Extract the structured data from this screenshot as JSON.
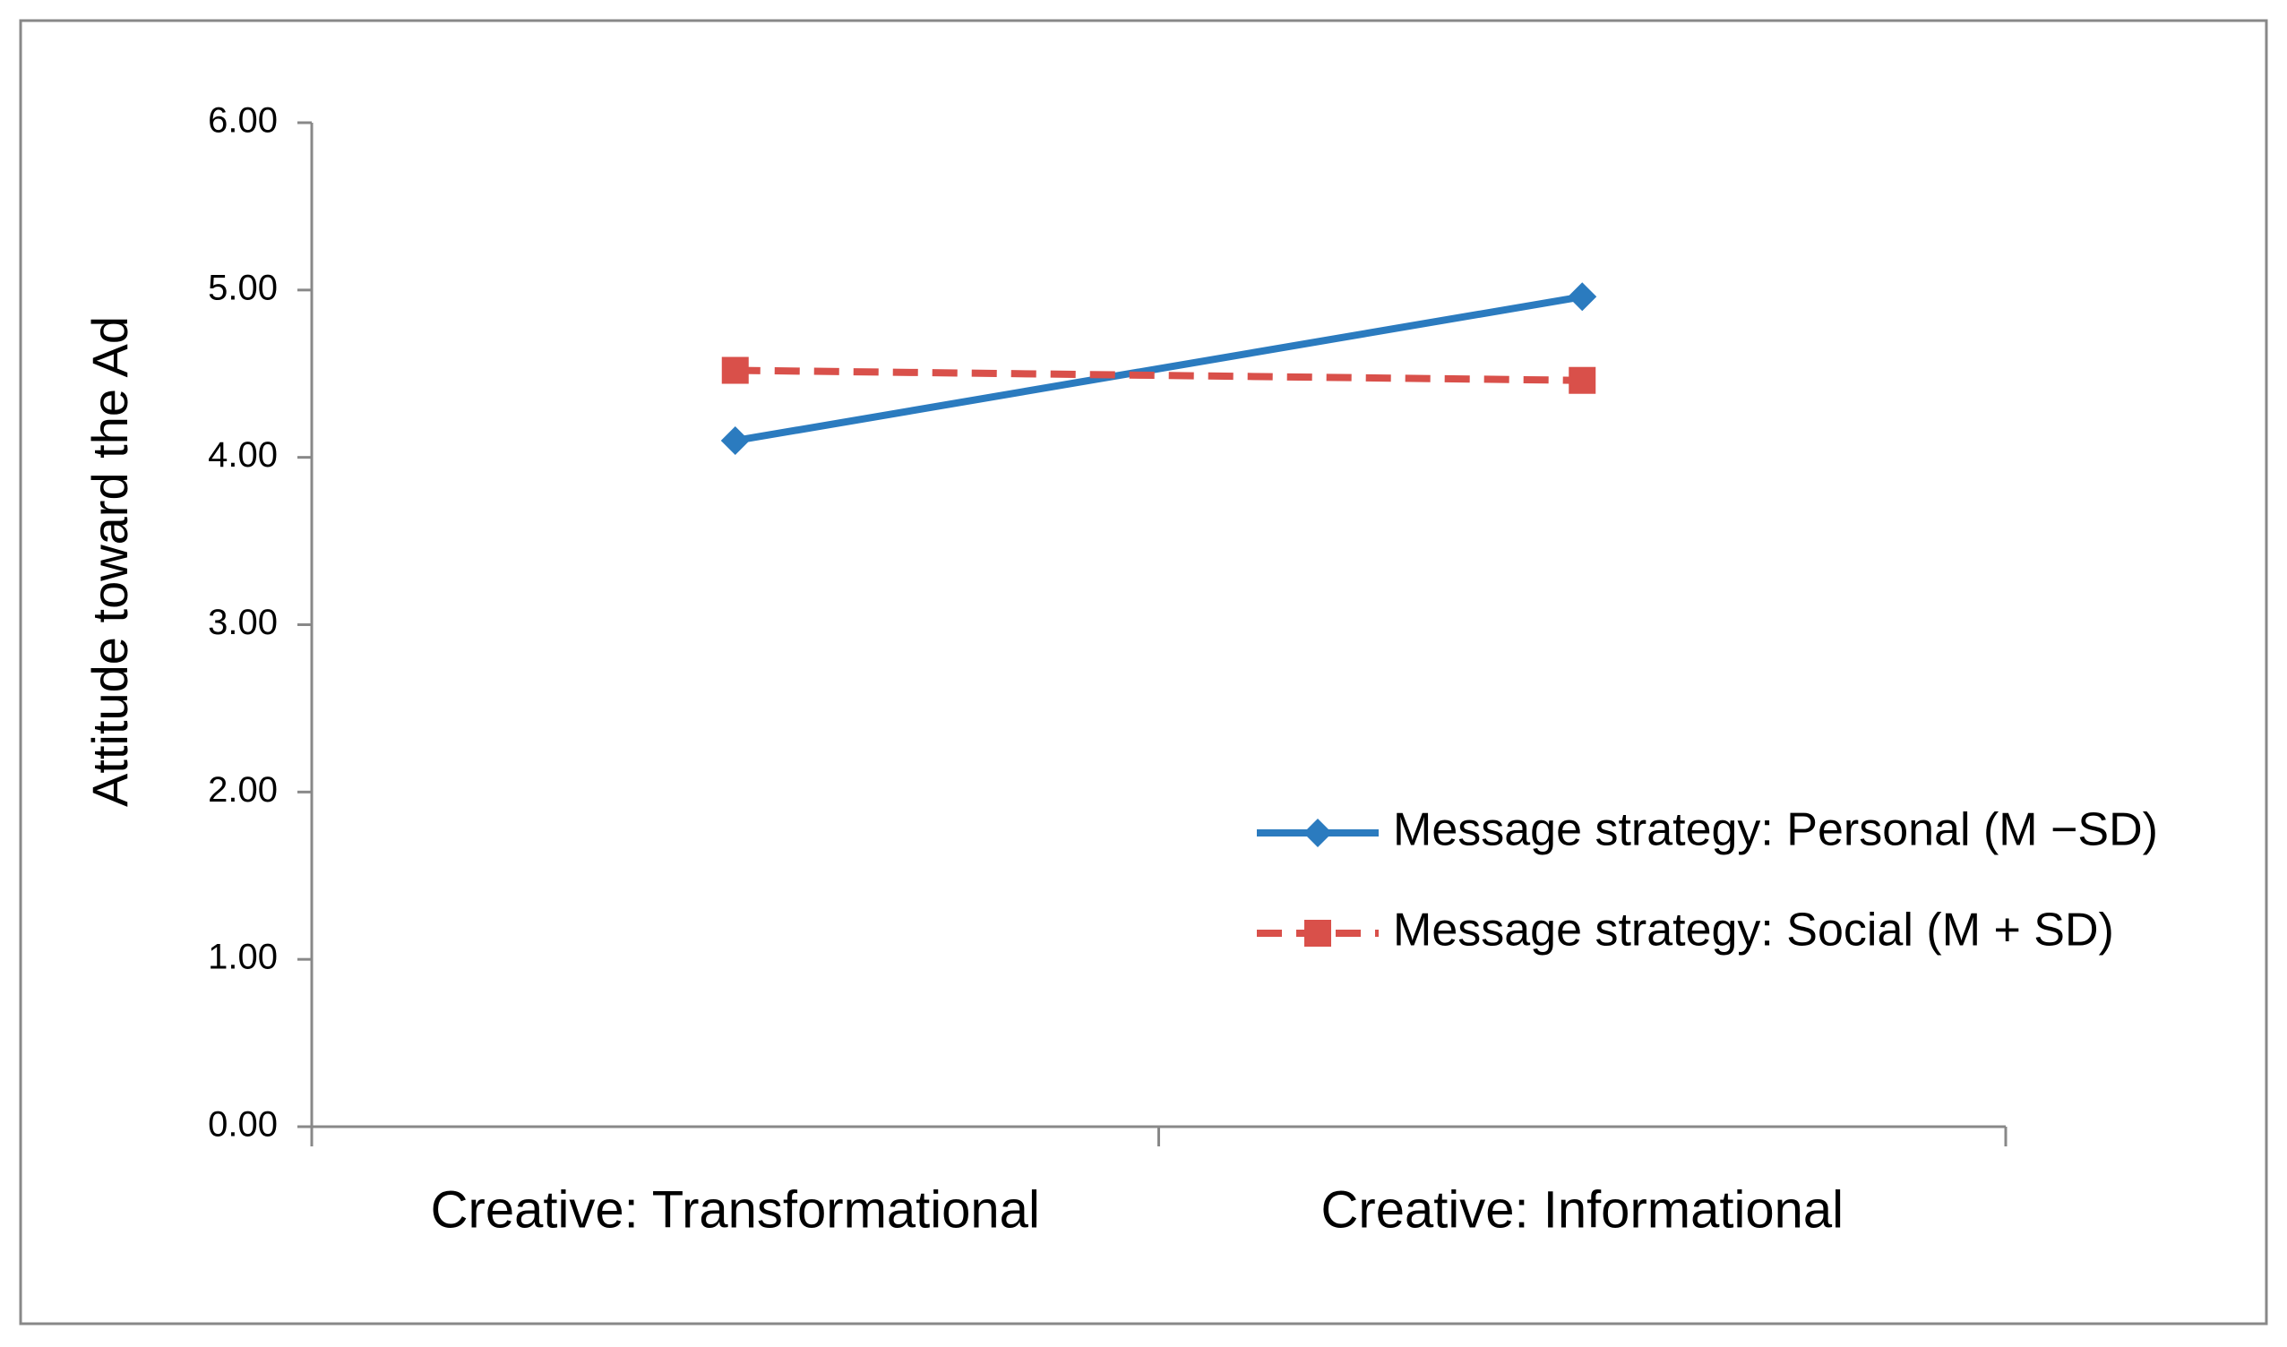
{
  "chart_data": {
    "type": "line",
    "y_label": "Attitude toward the Ad",
    "categories": [
      "Creative: Transformational",
      "Creative: Informational"
    ],
    "series": [
      {
        "name": "Message strategy: Personal (M −SD)",
        "color": "#2b7bbf",
        "marker": "diamond",
        "dashed": false,
        "values": [
          4.1,
          4.96
        ]
      },
      {
        "name": "Message strategy: Social (M + SD)",
        "color": "#d9504a",
        "marker": "square",
        "dashed": true,
        "values": [
          4.52,
          4.46
        ]
      }
    ],
    "ylim": [
      0,
      6
    ],
    "yticks": [
      {
        "value": 0,
        "label": "0.00"
      },
      {
        "value": 1,
        "label": "1.00"
      },
      {
        "value": 2,
        "label": "2.00"
      },
      {
        "value": 3,
        "label": "3.00"
      },
      {
        "value": 4,
        "label": "4.00"
      },
      {
        "value": 5,
        "label": "5.00"
      },
      {
        "value": 6,
        "label": "6.00"
      }
    ],
    "legend": "right"
  }
}
